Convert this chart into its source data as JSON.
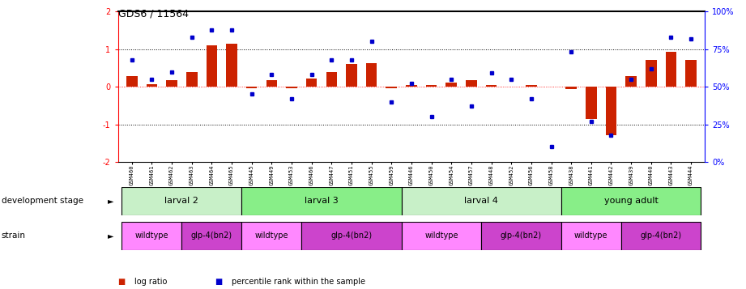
{
  "title": "GDS6 / 11564",
  "samples": [
    "GSM460",
    "GSM461",
    "GSM462",
    "GSM463",
    "GSM464",
    "GSM465",
    "GSM445",
    "GSM449",
    "GSM453",
    "GSM466",
    "GSM447",
    "GSM451",
    "GSM455",
    "GSM459",
    "GSM446",
    "GSM450",
    "GSM454",
    "GSM457",
    "GSM448",
    "GSM452",
    "GSM456",
    "GSM458",
    "GSM438",
    "GSM441",
    "GSM442",
    "GSM439",
    "GSM440",
    "GSM443",
    "GSM444"
  ],
  "log_ratio": [
    0.28,
    0.07,
    0.18,
    0.38,
    1.1,
    1.15,
    -0.04,
    0.18,
    -0.04,
    0.22,
    0.38,
    0.6,
    0.62,
    -0.04,
    0.04,
    0.04,
    0.12,
    0.18,
    0.05,
    0.0,
    0.05,
    0.0,
    -0.07,
    -0.85,
    -1.3,
    0.28,
    0.72,
    0.92,
    0.72
  ],
  "percentile": [
    68,
    55,
    60,
    83,
    88,
    88,
    45,
    58,
    42,
    58,
    68,
    68,
    80,
    40,
    52,
    30,
    55,
    37,
    59,
    55,
    42,
    10,
    73,
    27,
    18,
    55,
    62,
    83,
    82
  ],
  "dev_stages": [
    {
      "label": "larval 2",
      "start": 0,
      "end": 6,
      "color": "#c8f0c8"
    },
    {
      "label": "larval 3",
      "start": 6,
      "end": 14,
      "color": "#88ee88"
    },
    {
      "label": "larval 4",
      "start": 14,
      "end": 22,
      "color": "#c8f0c8"
    },
    {
      "label": "young adult",
      "start": 22,
      "end": 29,
      "color": "#88ee88"
    }
  ],
  "strains": [
    {
      "label": "wildtype",
      "start": 0,
      "end": 3,
      "color": "#ff88ff"
    },
    {
      "label": "glp-4(bn2)",
      "start": 3,
      "end": 6,
      "color": "#cc44cc"
    },
    {
      "label": "wildtype",
      "start": 6,
      "end": 9,
      "color": "#ff88ff"
    },
    {
      "label": "glp-4(bn2)",
      "start": 9,
      "end": 14,
      "color": "#cc44cc"
    },
    {
      "label": "wildtype",
      "start": 14,
      "end": 18,
      "color": "#ff88ff"
    },
    {
      "label": "glp-4(bn2)",
      "start": 18,
      "end": 22,
      "color": "#cc44cc"
    },
    {
      "label": "wildtype",
      "start": 22,
      "end": 25,
      "color": "#ff88ff"
    },
    {
      "label": "glp-4(bn2)",
      "start": 25,
      "end": 29,
      "color": "#cc44cc"
    }
  ],
  "bar_color": "#cc2200",
  "dot_color": "#0000cc",
  "ylim_left": [
    -2,
    2
  ],
  "ylim_right": [
    0,
    100
  ],
  "background_color": "#ffffff",
  "yticks_left": [
    -2,
    -1,
    0,
    1,
    2
  ],
  "ytick_labels_left": [
    "-2",
    "-1",
    "0",
    "1",
    "2"
  ],
  "yticks_right": [
    0,
    25,
    50,
    75,
    100
  ],
  "ytick_labels_right": [
    "0%",
    "25%",
    "50%",
    "75%",
    "100%"
  ],
  "label_dev": "development stage",
  "label_strain": "strain",
  "legend_bar_text": "log ratio",
  "legend_dot_text": "percentile rank within the sample"
}
